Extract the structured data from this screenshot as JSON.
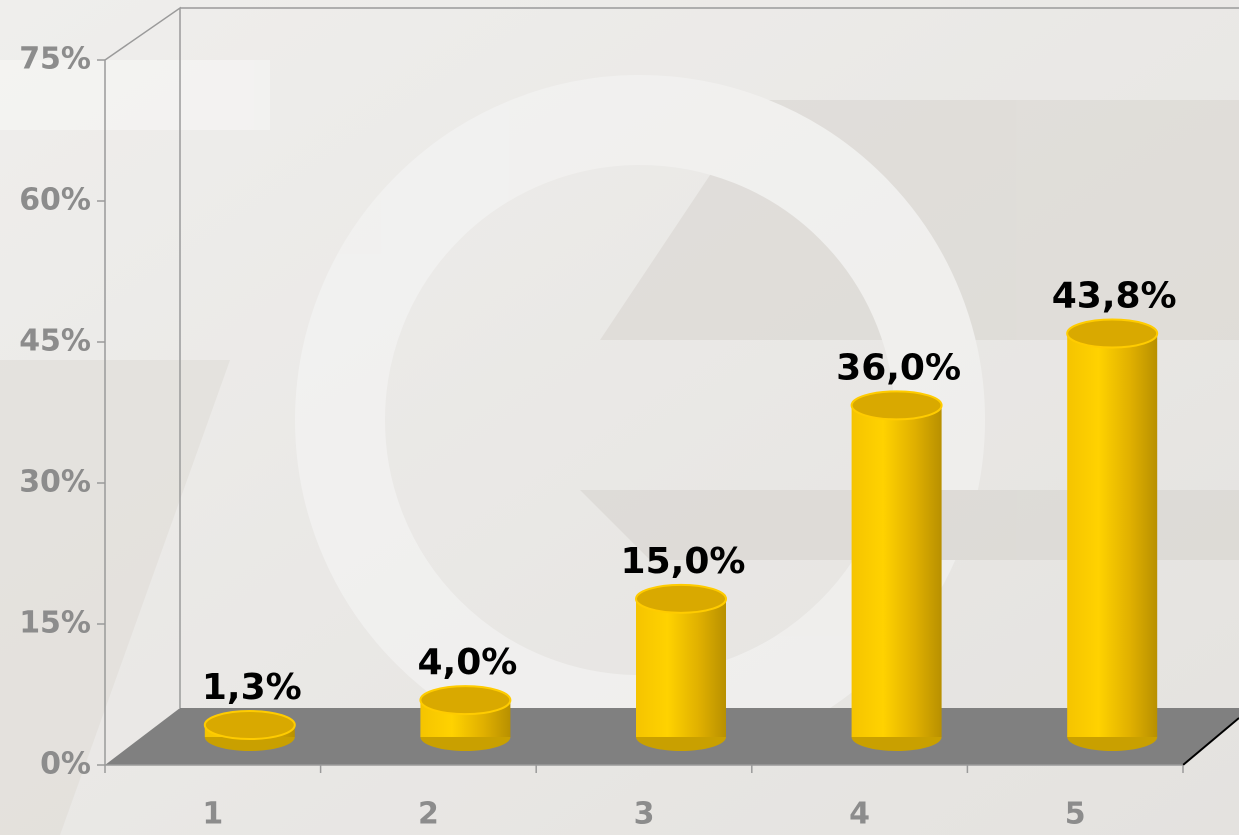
{
  "chart_data": {
    "type": "bar3d",
    "categories": [
      "1",
      "2",
      "3",
      "4",
      "5"
    ],
    "values": [
      1.3,
      4.0,
      15.0,
      36.0,
      43.8
    ],
    "value_labels": [
      "1,3%",
      "4,0%",
      "15,0%",
      "36,0%",
      "43,8%"
    ],
    "color": "#ffcc00",
    "ylim": [
      0,
      75
    ],
    "yticks": [
      {
        "value": 0,
        "label": "0%"
      },
      {
        "value": 15,
        "label": "15%"
      },
      {
        "value": 30,
        "label": "30%"
      },
      {
        "value": 45,
        "label": "45%"
      },
      {
        "value": 60,
        "label": "60%"
      },
      {
        "value": 75,
        "label": "75%"
      }
    ],
    "grid": false
  }
}
